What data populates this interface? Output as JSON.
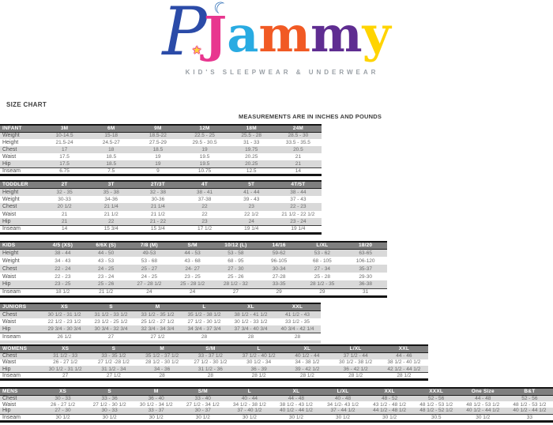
{
  "logo": {
    "letters": {
      "p": "P",
      "j": "J",
      "a": "a",
      "m1": "m",
      "m2": "m",
      "y": "y"
    },
    "icons": {
      "star_glyph": "★",
      "moon_glyph": "☾"
    },
    "colors": {
      "p": "#2b4ba8",
      "j": "#e8368f",
      "a": "#29abe2",
      "m1": "#f15a24",
      "m2": "#5f2d91",
      "y": "#ffd400",
      "star": "#ffd23c",
      "star_outline": "#e8368f",
      "moon": "#2f6fb7",
      "tagline": "#9aa0a6"
    },
    "tagline": "KID'S SLEEPWEAR & UNDERWEAR"
  },
  "labels": {
    "size_chart": "SIZE CHART",
    "measurements_note": "MEASUREMENTS ARE IN INCHES AND POUNDS"
  },
  "theme": {
    "header_bg": "#7f7f7f",
    "header_text": "#ffffff",
    "alt_row_bg": "#d9d9d9",
    "border": "#141414",
    "body_text": "#6b6b6b"
  },
  "tables": [
    {
      "id": "infant",
      "section": "INFANT",
      "columns": [
        "3M",
        "6M",
        "9M",
        "12M",
        "18M",
        "24M"
      ],
      "rows": [
        {
          "label": "Weight",
          "values": [
            "10-14.5",
            "15-18",
            "18.5-22",
            "22.5 - 25",
            "25.5 - 28",
            "28.5 - 30"
          ]
        },
        {
          "label": "Height",
          "values": [
            "21.5-24",
            "24.5-27",
            "27.5-29",
            "29.5 - 30.5",
            "31 - 33",
            "33.5 - 35.5"
          ]
        },
        {
          "label": "Chest",
          "values": [
            "17",
            "18",
            "18.5",
            "19",
            "19.75",
            "20.5"
          ]
        },
        {
          "label": "Waist",
          "values": [
            "17.5",
            "18.5",
            "19",
            "19.5",
            "20.25",
            "21"
          ]
        },
        {
          "label": "Hip",
          "values": [
            "17.5",
            "18.5",
            "19",
            "19.5",
            "20.25",
            "21"
          ]
        },
        {
          "label": "Inseam",
          "values": [
            "6.75",
            "7.5",
            "9",
            "10.75",
            "12.5",
            "14"
          ]
        }
      ],
      "trailing_blank_row": false
    },
    {
      "id": "toddler",
      "section": "TODDLER",
      "columns": [
        "2T",
        "3T",
        "2T/3T",
        "4T",
        "5T",
        "4T/5T"
      ],
      "rows": [
        {
          "label": "Height",
          "values": [
            "32 - 35",
            "35 - 38",
            "32 - 38",
            "38 - 41",
            "41 - 44",
            "38 - 44"
          ]
        },
        {
          "label": "Weight",
          "values": [
            "30-33",
            "34-36",
            "30-36",
            "37-38",
            "39 - 43",
            "37 - 43"
          ]
        },
        {
          "label": "Chest",
          "values": [
            "20 1/2",
            "21 1/4",
            "21 1/4",
            "22",
            "23",
            "22 - 23"
          ]
        },
        {
          "label": "Waist",
          "values": [
            "21",
            "21 1/2",
            "21 1/2",
            "22",
            "22 1/2",
            "21 1/2 - 22 1/2"
          ]
        },
        {
          "label": "Hip",
          "values": [
            "21",
            "22",
            "21 - 22",
            "23",
            "24",
            "23 - 24"
          ]
        },
        {
          "label": "Inseam",
          "values": [
            "14",
            "15 3/4",
            "15 3/4",
            "17 1/2",
            "19 1/4",
            "19 1/4"
          ]
        }
      ],
      "trailing_blank_row": false
    },
    {
      "id": "kids",
      "section": "KIDS",
      "columns": [
        "4/5 (XS)",
        "6/6X (S)",
        "7/8 (M)",
        "S/M",
        "10/12 (L)",
        "14/16",
        "L/XL",
        "18/20"
      ],
      "rows": [
        {
          "label": "Height",
          "values": [
            "38 - 44",
            "44 - 50",
            "49-53",
            "44 - 53",
            "53 - 58",
            "59-62",
            "53 - 62",
            "63-65"
          ]
        },
        {
          "label": "Weight",
          "values": [
            "34 - 43",
            "43 - 53",
            "53 - 68",
            "43 - 68",
            "68 - 95",
            "96-105",
            "68 - 105",
            "106-120"
          ]
        },
        {
          "label": "Chest",
          "values": [
            "22 - 24",
            "24 - 25",
            "25 - 27",
            "24- 27",
            "27 - 30",
            "30-34",
            "27 - 34",
            "35-37"
          ]
        },
        {
          "label": "Waist",
          "values": [
            "22 - 23",
            "23 - 24",
            "24 - 25",
            "23 - 25",
            "25 - 26",
            "27-28",
            "25 - 28",
            "29-30"
          ]
        },
        {
          "label": "Hip",
          "values": [
            "23 - 25",
            "25 - 26",
            "27 - 28 1/2",
            "25 - 28 1/2",
            "28 1/2 - 32",
            "33-35",
            "28 1/2 - 35",
            "36-38"
          ]
        },
        {
          "label": "Inseam",
          "values": [
            "18 1/2",
            "21 1/2",
            "24",
            "24",
            "27",
            "29",
            "29",
            "31"
          ]
        }
      ],
      "trailing_blank_row": false
    },
    {
      "id": "juniors",
      "section": "JUNIORS",
      "columns": [
        "XS",
        "S",
        "M",
        "L",
        "XL",
        "XXL"
      ],
      "rows": [
        {
          "label": "Chest",
          "values": [
            "30 1/2 - 31 1/2",
            "31 1/2 - 33 1/2",
            "33 1/2 - 35 1/2",
            "35 1/2 - 38 1/2",
            "38 1/2 - 41 1/2",
            "41 1/2 - 43"
          ]
        },
        {
          "label": "Waist",
          "values": [
            "22 1/2 - 23 1/2",
            "23 1/2 - 25 1/2",
            "25 1/2 - 27 1/2",
            "27 1/2 - 30 1/2",
            "30 1/2 - 33 1/2",
            "33 1/2 - 35"
          ]
        },
        {
          "label": "Hip",
          "values": [
            "29 3/4 - 30 3/4",
            "30 3/4 - 32 3/4",
            "32 3/4 - 34 3/4",
            "34 3/4 - 37 3/4",
            "37 3/4 - 40 3/4",
            "40 3/4 - 42 1/4"
          ]
        },
        {
          "label": "Inseam",
          "values": [
            "26 1/2",
            "27",
            "27 1/2",
            "28",
            "28",
            "28"
          ]
        }
      ],
      "trailing_blank_row": true
    },
    {
      "id": "womens",
      "section": "WOMENS",
      "columns": [
        "XS",
        "S",
        "M",
        "S/M",
        "L",
        "XL",
        "L/XL",
        "XXL"
      ],
      "rows": [
        {
          "label": "Chest",
          "values": [
            "31 1/2 - 33",
            "33 - 35 1/2",
            "35 1/2 - 37 1/2",
            "33 - 37 1/2",
            "37 1/2 - 40 1/2",
            "40 1/2 - 44",
            "37 1/2 - 44",
            "44 - 46"
          ]
        },
        {
          "label": "Waist",
          "values": [
            "26 - 27 1/2",
            "27 1/2 -28 1/2",
            "28 1/2 - 30 1/2",
            "27 1/2 - 30 1/2",
            "30 1/2 - 34",
            "34 - 38 1/2",
            "30 1/2 - 38 1/2",
            "38 1/2 - 40 1/2"
          ]
        },
        {
          "label": "Hip",
          "values": [
            "30 1/2 - 31 1/2",
            "31 1/2 - 34",
            "34 - 36",
            "31 1/2 - 36",
            "36 - 39",
            "39 - 42 1/2",
            "36 - 42 1/2",
            "42 1/2 - 44 1/2"
          ]
        },
        {
          "label": "Inseam",
          "values": [
            "27",
            "27 1/2",
            "28",
            "28",
            "28 1/2",
            "28 1/2",
            "28 1/2",
            "28 1/2"
          ]
        }
      ],
      "trailing_blank_row": false
    },
    {
      "id": "mens",
      "section": "MENS",
      "columns": [
        "XS",
        "S",
        "M",
        "S/M",
        "L",
        "XL",
        "L/XL",
        "XXL",
        "XXXL",
        "One Size",
        "B&T"
      ],
      "rows": [
        {
          "label": "Chest",
          "values": [
            "30 - 33",
            "33 - 36",
            "36 - 40",
            "33 - 40",
            "40 - 44",
            "44 - 48",
            "40 - 48",
            "48 - 52",
            "52 - 56",
            "44 - 48",
            "52 - 56"
          ]
        },
        {
          "label": "Waist",
          "values": [
            "26 - 27 1/2",
            "27 1/2 - 30 1/2",
            "30 1/2 - 34 1/2",
            "27 1/2 - 34 1/2",
            "34 1/2 - 38 1/2",
            "38 1/2 - 43 1/2",
            "34 1/2- 43 1/2",
            "43 1/2 - 48 1/2",
            "48 1/2 - 53 1/2",
            "48 1/2 - 53 1/2",
            "48 1/2 - 53 1/2"
          ]
        },
        {
          "label": "Hip",
          "values": [
            "27 - 30",
            "30 - 33",
            "33 - 37",
            "30 - 37",
            "37 - 40 1/2",
            "40 1/2 - 44 1/2",
            "37 - 44 1/2",
            "44 1/2 - 48 1/2",
            "48 1/2 - 52 1/2",
            "40 1/2 - 44 1/2",
            "40 1/2 - 44 1/2"
          ]
        },
        {
          "label": "Inseam",
          "values": [
            "30 1/2",
            "30 1/2",
            "30 1/2",
            "30 1/2",
            "30 1/2",
            "30 1/2",
            "30 1/2",
            "30 1/2",
            "30.5",
            "30 1/2",
            "33"
          ]
        }
      ],
      "trailing_blank_row": false
    }
  ]
}
